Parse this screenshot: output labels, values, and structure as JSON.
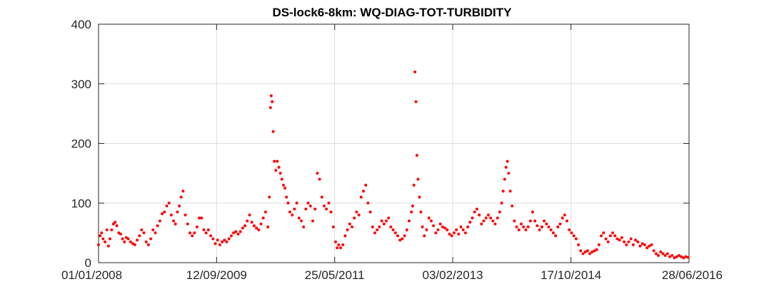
{
  "chart_data": {
    "type": "scatter",
    "title": "DS-lock6-8km: WQ-DIAG-TOT-TURBIDITY",
    "xlabel": "",
    "ylabel": "",
    "x_type": "date",
    "xlim": [
      "2008-01-01",
      "2016-06-28"
    ],
    "ylim": [
      0,
      400
    ],
    "x_ticks": [
      "2008-01-01",
      "2009-09-12",
      "2011-05-25",
      "2013-02-03",
      "2014-10-17",
      "2016-06-28"
    ],
    "x_tick_labels": [
      "01/01/2008",
      "12/09/2009",
      "25/05/2011",
      "03/02/2013",
      "17/10/2014",
      "28/06/2016"
    ],
    "y_ticks": [
      0,
      100,
      200,
      300,
      400
    ],
    "y_tick_labels": [
      "0",
      "100",
      "200",
      "300",
      "400"
    ],
    "grid": true,
    "legend": "none",
    "marker_color": "#ff0000",
    "series": [
      {
        "points": [
          [
            "2008-01-01",
            30
          ],
          [
            "2008-01-09",
            45
          ],
          [
            "2008-01-17",
            50
          ],
          [
            "2008-01-25",
            40
          ],
          [
            "2008-02-04",
            35
          ],
          [
            "2008-02-14",
            55
          ],
          [
            "2008-02-22",
            28
          ],
          [
            "2008-03-01",
            40
          ],
          [
            "2008-03-10",
            55
          ],
          [
            "2008-03-19",
            65
          ],
          [
            "2008-03-28",
            68
          ],
          [
            "2008-04-06",
            62
          ],
          [
            "2008-04-16",
            50
          ],
          [
            "2008-04-26",
            48
          ],
          [
            "2008-05-06",
            40
          ],
          [
            "2008-05-16",
            35
          ],
          [
            "2008-05-26",
            42
          ],
          [
            "2008-06-05",
            40
          ],
          [
            "2008-06-17",
            35
          ],
          [
            "2008-06-29",
            32
          ],
          [
            "2008-07-10",
            30
          ],
          [
            "2008-07-22",
            38
          ],
          [
            "2008-08-03",
            45
          ],
          [
            "2008-08-14",
            55
          ],
          [
            "2008-08-26",
            50
          ],
          [
            "2008-09-07",
            35
          ],
          [
            "2008-09-19",
            30
          ],
          [
            "2008-10-01",
            40
          ],
          [
            "2008-10-13",
            55
          ],
          [
            "2008-10-25",
            50
          ],
          [
            "2008-11-06",
            62
          ],
          [
            "2008-11-18",
            70
          ],
          [
            "2008-11-30",
            82
          ],
          [
            "2008-12-12",
            85
          ],
          [
            "2008-12-24",
            95
          ],
          [
            "2009-01-05",
            100
          ],
          [
            "2009-01-17",
            80
          ],
          [
            "2009-01-29",
            70
          ],
          [
            "2009-02-08",
            65
          ],
          [
            "2009-02-18",
            85
          ],
          [
            "2009-02-28",
            95
          ],
          [
            "2009-03-10",
            110
          ],
          [
            "2009-03-20",
            120
          ],
          [
            "2009-04-01",
            80
          ],
          [
            "2009-04-13",
            65
          ],
          [
            "2009-04-25",
            50
          ],
          [
            "2009-05-07",
            45
          ],
          [
            "2009-05-19",
            50
          ],
          [
            "2009-06-01",
            60
          ],
          [
            "2009-06-13",
            75
          ],
          [
            "2009-06-25",
            75
          ],
          [
            "2009-07-07",
            55
          ],
          [
            "2009-07-19",
            50
          ],
          [
            "2009-07-31",
            55
          ],
          [
            "2009-08-12",
            45
          ],
          [
            "2009-08-24",
            40
          ],
          [
            "2009-09-05",
            32
          ],
          [
            "2009-09-17",
            38
          ],
          [
            "2009-09-29",
            30
          ],
          [
            "2009-10-11",
            35
          ],
          [
            "2009-10-23",
            38
          ],
          [
            "2009-11-04",
            35
          ],
          [
            "2009-11-16",
            40
          ],
          [
            "2009-11-28",
            45
          ],
          [
            "2009-12-10",
            50
          ],
          [
            "2009-12-22",
            52
          ],
          [
            "2010-01-03",
            48
          ],
          [
            "2010-01-15",
            52
          ],
          [
            "2010-01-27",
            58
          ],
          [
            "2010-02-08",
            62
          ],
          [
            "2010-02-20",
            70
          ],
          [
            "2010-03-04",
            80
          ],
          [
            "2010-03-16",
            68
          ],
          [
            "2010-03-28",
            62
          ],
          [
            "2010-04-09",
            58
          ],
          [
            "2010-04-21",
            55
          ],
          [
            "2010-05-03",
            65
          ],
          [
            "2010-05-15",
            75
          ],
          [
            "2010-05-27",
            85
          ],
          [
            "2010-06-08",
            60
          ],
          [
            "2010-06-16",
            110
          ],
          [
            "2010-06-22",
            260
          ],
          [
            "2010-06-26",
            280
          ],
          [
            "2010-07-01",
            270
          ],
          [
            "2010-07-06",
            220
          ],
          [
            "2010-07-12",
            170
          ],
          [
            "2010-07-20",
            155
          ],
          [
            "2010-07-28",
            170
          ],
          [
            "2010-08-05",
            160
          ],
          [
            "2010-08-13",
            150
          ],
          [
            "2010-08-21",
            140
          ],
          [
            "2010-08-29",
            130
          ],
          [
            "2010-09-06",
            125
          ],
          [
            "2010-09-14",
            110
          ],
          [
            "2010-09-22",
            100
          ],
          [
            "2010-10-02",
            85
          ],
          [
            "2010-10-14",
            80
          ],
          [
            "2010-10-26",
            90
          ],
          [
            "2010-11-07",
            100
          ],
          [
            "2010-11-19",
            75
          ],
          [
            "2010-12-01",
            70
          ],
          [
            "2010-12-13",
            60
          ],
          [
            "2010-12-25",
            90
          ],
          [
            "2011-01-06",
            100
          ],
          [
            "2011-01-18",
            95
          ],
          [
            "2011-01-30",
            70
          ],
          [
            "2011-02-11",
            90
          ],
          [
            "2011-02-23",
            150
          ],
          [
            "2011-03-07",
            140
          ],
          [
            "2011-03-19",
            110
          ],
          [
            "2011-03-31",
            95
          ],
          [
            "2011-04-12",
            90
          ],
          [
            "2011-04-24",
            100
          ],
          [
            "2011-05-06",
            85
          ],
          [
            "2011-05-18",
            60
          ],
          [
            "2011-05-30",
            35
          ],
          [
            "2011-06-07",
            25
          ],
          [
            "2011-06-15",
            30
          ],
          [
            "2011-06-25",
            25
          ],
          [
            "2011-07-07",
            30
          ],
          [
            "2011-07-19",
            45
          ],
          [
            "2011-07-31",
            55
          ],
          [
            "2011-08-12",
            65
          ],
          [
            "2011-08-24",
            60
          ],
          [
            "2011-09-05",
            75
          ],
          [
            "2011-09-17",
            85
          ],
          [
            "2011-09-29",
            80
          ],
          [
            "2011-10-11",
            110
          ],
          [
            "2011-10-23",
            120
          ],
          [
            "2011-11-04",
            130
          ],
          [
            "2011-11-16",
            100
          ],
          [
            "2011-11-28",
            85
          ],
          [
            "2011-12-10",
            60
          ],
          [
            "2011-12-22",
            50
          ],
          [
            "2012-01-03",
            55
          ],
          [
            "2012-01-15",
            60
          ],
          [
            "2012-01-27",
            70
          ],
          [
            "2012-02-08",
            65
          ],
          [
            "2012-02-20",
            70
          ],
          [
            "2012-03-03",
            75
          ],
          [
            "2012-03-15",
            60
          ],
          [
            "2012-03-27",
            55
          ],
          [
            "2012-04-08",
            50
          ],
          [
            "2012-04-20",
            45
          ],
          [
            "2012-05-02",
            38
          ],
          [
            "2012-05-14",
            40
          ],
          [
            "2012-05-26",
            45
          ],
          [
            "2012-06-07",
            55
          ],
          [
            "2012-06-19",
            70
          ],
          [
            "2012-07-01",
            85
          ],
          [
            "2012-07-08",
            95
          ],
          [
            "2012-07-14",
            130
          ],
          [
            "2012-07-20",
            320
          ],
          [
            "2012-07-25",
            270
          ],
          [
            "2012-07-30",
            180
          ],
          [
            "2012-08-05",
            140
          ],
          [
            "2012-08-12",
            110
          ],
          [
            "2012-08-20",
            85
          ],
          [
            "2012-08-28",
            60
          ],
          [
            "2012-09-07",
            45
          ],
          [
            "2012-09-19",
            55
          ],
          [
            "2012-10-01",
            75
          ],
          [
            "2012-10-13",
            70
          ],
          [
            "2012-10-25",
            62
          ],
          [
            "2012-11-06",
            50
          ],
          [
            "2012-11-18",
            55
          ],
          [
            "2012-11-30",
            65
          ],
          [
            "2012-12-12",
            60
          ],
          [
            "2012-12-24",
            58
          ],
          [
            "2013-01-05",
            55
          ],
          [
            "2013-01-17",
            48
          ],
          [
            "2013-01-29",
            45
          ],
          [
            "2013-02-10",
            50
          ],
          [
            "2013-02-22",
            55
          ],
          [
            "2013-03-06",
            48
          ],
          [
            "2013-03-18",
            60
          ],
          [
            "2013-03-30",
            55
          ],
          [
            "2013-04-11",
            50
          ],
          [
            "2013-04-23",
            60
          ],
          [
            "2013-05-05",
            68
          ],
          [
            "2013-05-17",
            75
          ],
          [
            "2013-05-29",
            85
          ],
          [
            "2013-06-10",
            90
          ],
          [
            "2013-06-22",
            80
          ],
          [
            "2013-07-04",
            65
          ],
          [
            "2013-07-16",
            70
          ],
          [
            "2013-07-28",
            75
          ],
          [
            "2013-08-09",
            80
          ],
          [
            "2013-08-21",
            75
          ],
          [
            "2013-09-02",
            70
          ],
          [
            "2013-09-14",
            65
          ],
          [
            "2013-09-26",
            75
          ],
          [
            "2013-10-08",
            85
          ],
          [
            "2013-10-18",
            100
          ],
          [
            "2013-10-26",
            120
          ],
          [
            "2013-11-03",
            140
          ],
          [
            "2013-11-10",
            160
          ],
          [
            "2013-11-17",
            170
          ],
          [
            "2013-11-24",
            150
          ],
          [
            "2013-12-02",
            120
          ],
          [
            "2013-12-12",
            95
          ],
          [
            "2013-12-24",
            70
          ],
          [
            "2014-01-05",
            60
          ],
          [
            "2014-01-17",
            55
          ],
          [
            "2014-01-29",
            65
          ],
          [
            "2014-02-10",
            60
          ],
          [
            "2014-02-22",
            55
          ],
          [
            "2014-03-06",
            60
          ],
          [
            "2014-03-18",
            70
          ],
          [
            "2014-03-30",
            85
          ],
          [
            "2014-04-11",
            70
          ],
          [
            "2014-04-23",
            62
          ],
          [
            "2014-05-05",
            55
          ],
          [
            "2014-05-17",
            60
          ],
          [
            "2014-05-29",
            70
          ],
          [
            "2014-06-10",
            65
          ],
          [
            "2014-06-22",
            60
          ],
          [
            "2014-07-04",
            55
          ],
          [
            "2014-07-16",
            50
          ],
          [
            "2014-07-28",
            45
          ],
          [
            "2014-08-09",
            60
          ],
          [
            "2014-08-21",
            65
          ],
          [
            "2014-09-02",
            75
          ],
          [
            "2014-09-14",
            80
          ],
          [
            "2014-09-26",
            70
          ],
          [
            "2014-10-08",
            55
          ],
          [
            "2014-10-20",
            50
          ],
          [
            "2014-11-01",
            45
          ],
          [
            "2014-11-13",
            40
          ],
          [
            "2014-11-25",
            30
          ],
          [
            "2014-12-07",
            20
          ],
          [
            "2014-12-19",
            15
          ],
          [
            "2014-12-31",
            18
          ],
          [
            "2015-01-12",
            20
          ],
          [
            "2015-01-24",
            15
          ],
          [
            "2015-02-05",
            18
          ],
          [
            "2015-02-17",
            20
          ],
          [
            "2015-03-01",
            22
          ],
          [
            "2015-03-13",
            30
          ],
          [
            "2015-03-25",
            45
          ],
          [
            "2015-04-06",
            50
          ],
          [
            "2015-04-18",
            40
          ],
          [
            "2015-04-30",
            35
          ],
          [
            "2015-05-12",
            45
          ],
          [
            "2015-05-24",
            50
          ],
          [
            "2015-06-05",
            45
          ],
          [
            "2015-06-17",
            40
          ],
          [
            "2015-06-29",
            38
          ],
          [
            "2015-07-11",
            42
          ],
          [
            "2015-07-23",
            35
          ],
          [
            "2015-08-04",
            30
          ],
          [
            "2015-08-16",
            35
          ],
          [
            "2015-08-28",
            40
          ],
          [
            "2015-09-09",
            30
          ],
          [
            "2015-09-21",
            38
          ],
          [
            "2015-10-03",
            35
          ],
          [
            "2015-10-15",
            28
          ],
          [
            "2015-10-27",
            32
          ],
          [
            "2015-11-08",
            30
          ],
          [
            "2015-11-20",
            25
          ],
          [
            "2015-12-02",
            28
          ],
          [
            "2015-12-14",
            30
          ],
          [
            "2015-12-26",
            20
          ],
          [
            "2016-01-07",
            15
          ],
          [
            "2016-01-19",
            12
          ],
          [
            "2016-01-31",
            18
          ],
          [
            "2016-02-12",
            15
          ],
          [
            "2016-02-24",
            12
          ],
          [
            "2016-03-07",
            15
          ],
          [
            "2016-03-19",
            10
          ],
          [
            "2016-03-31",
            12
          ],
          [
            "2016-04-12",
            8
          ],
          [
            "2016-04-24",
            10
          ],
          [
            "2016-05-06",
            12
          ],
          [
            "2016-05-18",
            10
          ],
          [
            "2016-05-30",
            8
          ],
          [
            "2016-06-11",
            10
          ],
          [
            "2016-06-23",
            9
          ]
        ]
      }
    ]
  }
}
